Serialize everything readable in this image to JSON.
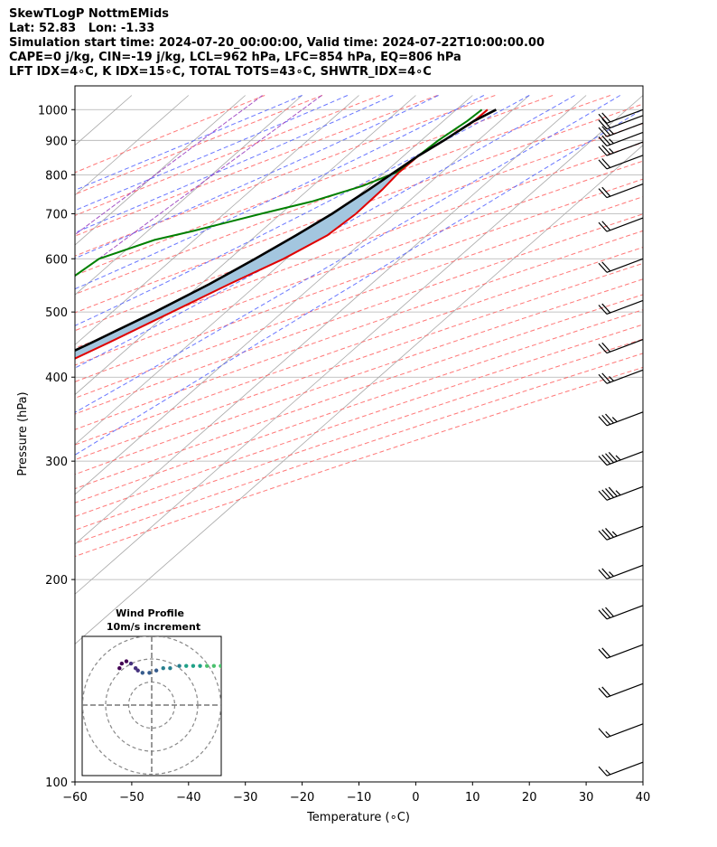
{
  "header": {
    "lines": [
      "SkewTLogP NottmEMids",
      "Lat: 52.83   Lon: -1.33",
      "Simulation start time: 2024-07-20_00:00:00, Valid time: 2024-07-22T10:00:00.00",
      "CAPE=0 j/kg, CIN=-19 j/kg, LCL=962 hPa, LFC=854 hPa, EQ=806 hPa",
      "LFT IDX=4∘C, K IDX=15∘C, TOTAL TOTS=43∘C, SHWTR_IDX=4∘C"
    ]
  },
  "chart_data": [
    {
      "type": "line",
      "subtype": "skew-t-log-p",
      "xlabel": "Temperature (∘C)",
      "ylabel": "Pressure (hPa)",
      "xlim": [
        -60,
        40
      ],
      "ylim": [
        1050,
        100
      ],
      "yscale": "log",
      "skewed_isotherms": true,
      "grid": true,
      "x_ticks": [
        "−60",
        "−50",
        "−40",
        "−30",
        "−20",
        "−10",
        "0",
        "10",
        "20",
        "30",
        "40"
      ],
      "x_tick_values": [
        -60,
        -50,
        -40,
        -30,
        -20,
        -10,
        0,
        10,
        20,
        30,
        40
      ],
      "y_ticks": [
        "100",
        "200",
        "300",
        "400",
        "500",
        "600",
        "700",
        "800",
        "900",
        "1000"
      ],
      "y_tick_values": [
        100,
        200,
        300,
        400,
        500,
        600,
        700,
        800,
        900,
        1000
      ],
      "colors": {
        "temperature": "#e00000",
        "dewpoint": "#008000",
        "parcel": "#000000",
        "cape_fill": "#a3c6df",
        "dry_adiabats": "#ff6060",
        "moist_adiabats": "#4f5fff",
        "mixing_ratio": "#9a3fc0"
      },
      "series": [
        {
          "key": "temperature",
          "points": [
            [
              1000,
              15.5
            ],
            [
              962,
              15.4
            ],
            [
              900,
              14.0
            ],
            [
              854,
              12.6
            ],
            [
              806,
              12.5
            ],
            [
              760,
              13.0
            ],
            [
              700,
              13.2
            ],
            [
              650,
              12.5
            ],
            [
              600,
              9.5
            ],
            [
              550,
              5.0
            ],
            [
              500,
              0.5
            ],
            [
              450,
              -4.5
            ],
            [
              400,
              -10.5
            ],
            [
              350,
              -16.5
            ],
            [
              300,
              -23.5
            ],
            [
              270,
              -28.5
            ],
            [
              250,
              -32.5
            ],
            [
              230,
              -37.5
            ],
            [
              210,
              -41.5
            ],
            [
              195,
              -45.0
            ],
            [
              180,
              -48.5
            ],
            [
              165,
              -52.0
            ],
            [
              155,
              -55.0
            ],
            [
              143,
              -58.5
            ],
            [
              130,
              -62.5
            ],
            [
              115,
              -67.5
            ],
            [
              100,
              -74.0
            ]
          ]
        },
        {
          "key": "dewpoint",
          "points": [
            [
              1000,
              14.5
            ],
            [
              962,
              14.2
            ],
            [
              900,
              13.0
            ],
            [
              860,
              12.6
            ],
            [
              806,
              12.0
            ],
            [
              770,
              8.8
            ],
            [
              730,
              3.0
            ],
            [
              700,
              -3.5
            ],
            [
              660,
              -12.0
            ],
            [
              640,
              -17.0
            ],
            [
              600,
              -23.0
            ],
            [
              560,
              -24.0
            ],
            [
              500,
              -26.5
            ],
            [
              440,
              -30.0
            ],
            [
              420,
              -29.5
            ],
            [
              380,
              -28.5
            ],
            [
              340,
              -31.0
            ],
            [
              300,
              -35.5
            ],
            [
              270,
              -38.0
            ],
            [
              245,
              -40.5
            ],
            [
              220,
              -44.0
            ],
            [
              200,
              -47.5
            ],
            [
              180,
              -51.0
            ],
            [
              170,
              -53.0
            ],
            [
              155,
              -60.0
            ],
            [
              145,
              -66.0
            ],
            [
              130,
              -71.0
            ],
            [
              100,
              -91.0
            ]
          ]
        },
        {
          "key": "parcel",
          "points": [
            [
              1000,
              17.0
            ],
            [
              962,
              15.4
            ],
            [
              900,
              14.0
            ],
            [
              854,
              12.6
            ],
            [
              806,
              11.6
            ],
            [
              760,
              10.6
            ],
            [
              700,
              9.0
            ],
            [
              650,
              7.0
            ],
            [
              600,
              4.5
            ],
            [
              550,
              1.5
            ],
            [
              500,
              -2.5
            ],
            [
              450,
              -7.5
            ],
            [
              400,
              -13.5
            ],
            [
              350,
              -20.5
            ],
            [
              300,
              -29.5
            ],
            [
              270,
              -35.5
            ],
            [
              250,
              -40.5
            ],
            [
              230,
              -45.5
            ],
            [
              210,
              -51.0
            ],
            [
              195,
              -55.5
            ],
            [
              180,
              -60.0
            ],
            [
              165,
              -65.5
            ],
            [
              150,
              -71.0
            ],
            [
              140,
              -75.5
            ],
            [
              130,
              -80.5
            ],
            [
              115,
              -87.5
            ],
            [
              100,
              -95.5
            ]
          ]
        }
      ],
      "wind_barbs": [
        {
          "p": 1000,
          "speed_kt": 20
        },
        {
          "p": 980,
          "speed_kt": 20
        },
        {
          "p": 955,
          "speed_kt": 25
        },
        {
          "p": 925,
          "speed_kt": 25
        },
        {
          "p": 895,
          "speed_kt": 25
        },
        {
          "p": 855,
          "speed_kt": 20
        },
        {
          "p": 775,
          "speed_kt": 20
        },
        {
          "p": 690,
          "speed_kt": 20
        },
        {
          "p": 600,
          "speed_kt": 20
        },
        {
          "p": 520,
          "speed_kt": 20
        },
        {
          "p": 455,
          "speed_kt": 20
        },
        {
          "p": 410,
          "speed_kt": 25
        },
        {
          "p": 355,
          "speed_kt": 35
        },
        {
          "p": 310,
          "speed_kt": 45
        },
        {
          "p": 275,
          "speed_kt": 45
        },
        {
          "p": 240,
          "speed_kt": 35
        },
        {
          "p": 210,
          "speed_kt": 25
        },
        {
          "p": 183,
          "speed_kt": 30
        },
        {
          "p": 160,
          "speed_kt": 20
        },
        {
          "p": 140,
          "speed_kt": 20
        },
        {
          "p": 122,
          "speed_kt": 15
        },
        {
          "p": 107,
          "speed_kt": 15
        }
      ]
    },
    {
      "type": "scatter",
      "subtype": "hodograph",
      "title": "Wind Profile",
      "subtitle": "10m/s increment",
      "ring_increment": 10,
      "rings": 3,
      "points": [
        [
          -14,
          16
        ],
        [
          -13,
          18
        ],
        [
          -11,
          19
        ],
        [
          -9,
          18
        ],
        [
          -7,
          16
        ],
        [
          -6,
          15
        ],
        [
          -4,
          14
        ],
        [
          -1,
          14
        ],
        [
          2,
          15
        ],
        [
          5,
          16
        ],
        [
          8,
          16
        ],
        [
          12,
          17
        ],
        [
          15,
          17
        ],
        [
          18,
          17
        ],
        [
          21,
          17
        ],
        [
          24,
          17
        ],
        [
          27,
          17
        ],
        [
          30,
          17
        ],
        [
          32,
          18
        ],
        [
          34,
          20
        ],
        [
          35,
          21
        ],
        [
          33,
          18
        ],
        [
          31,
          16
        ]
      ]
    }
  ]
}
